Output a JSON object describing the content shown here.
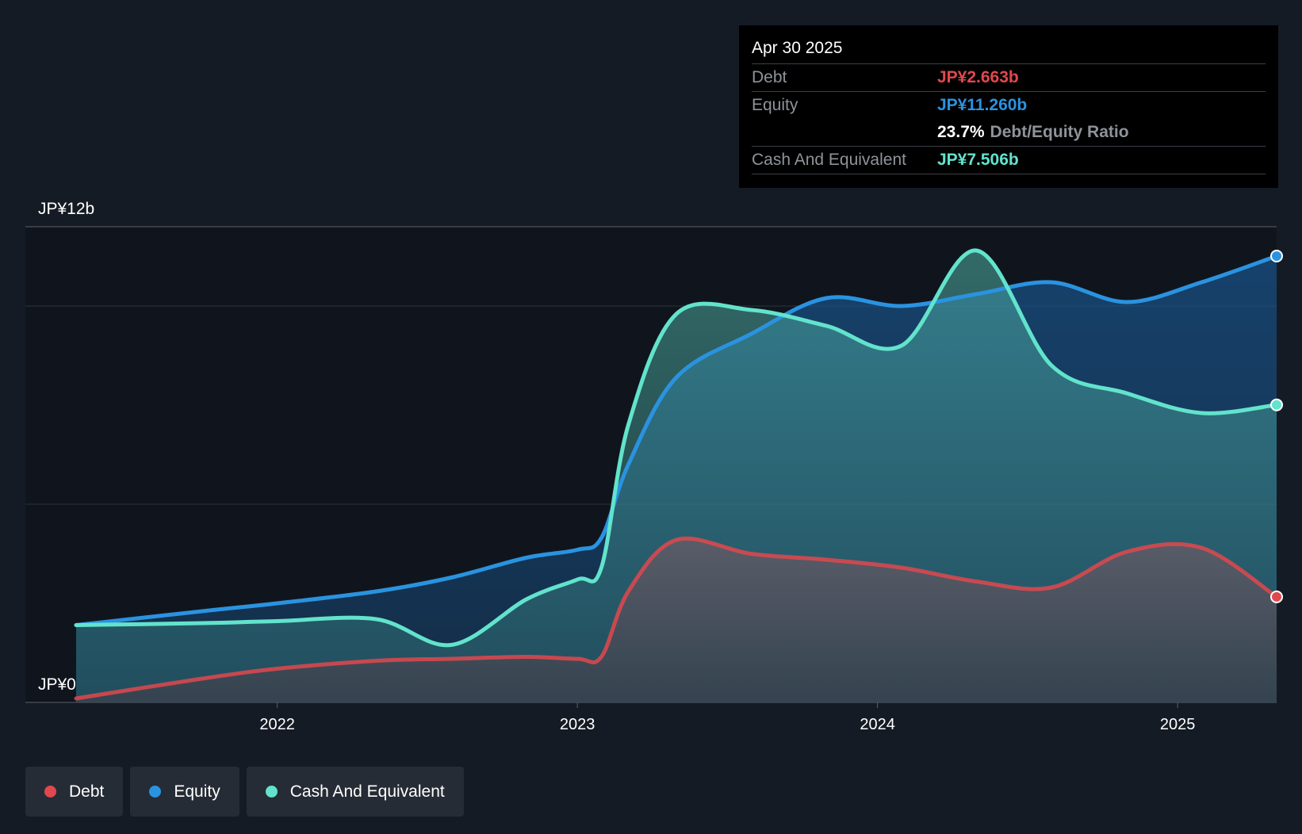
{
  "colors": {
    "debt": "#e0484e",
    "equity": "#2a93e0",
    "cash": "#62e3cc",
    "background": "#151b24",
    "plot_background": "#10151d"
  },
  "tooltip": {
    "date": "Apr 30 2025",
    "debt_label": "Debt",
    "debt_value": "JP¥2.663b",
    "equity_label": "Equity",
    "equity_value": "JP¥11.260b",
    "ratio_value": "23.7%",
    "ratio_label": "Debt/Equity Ratio",
    "cash_label": "Cash And Equivalent",
    "cash_value": "JP¥7.506b"
  },
  "legend": {
    "debt": "Debt",
    "equity": "Equity",
    "cash": "Cash And Equivalent"
  },
  "chart_data": {
    "type": "area",
    "title": "",
    "xlabel": "",
    "ylabel": "",
    "y_top_label": "JP¥12b",
    "y_bottom_label": "JP¥0",
    "ylim": [
      0,
      12
    ],
    "y_unit": "JP¥ billions",
    "x_range": [
      2021.33,
      2025.33
    ],
    "x_ticks": [
      {
        "value": 2022,
        "label": "2022"
      },
      {
        "value": 2023,
        "label": "2023"
      },
      {
        "value": 2024,
        "label": "2024"
      },
      {
        "value": 2025,
        "label": "2025"
      }
    ],
    "gridlines": [
      5,
      10
    ],
    "series": [
      {
        "name": "Equity",
        "key": "equity",
        "points": [
          [
            2021.33,
            1.95
          ],
          [
            2021.75,
            2.3
          ],
          [
            2022.0,
            2.5
          ],
          [
            2022.33,
            2.8
          ],
          [
            2022.58,
            3.15
          ],
          [
            2022.83,
            3.65
          ],
          [
            2023.0,
            3.85
          ],
          [
            2023.08,
            4.15
          ],
          [
            2023.17,
            6.0
          ],
          [
            2023.33,
            8.2
          ],
          [
            2023.58,
            9.3
          ],
          [
            2023.83,
            10.2
          ],
          [
            2024.08,
            10.0
          ],
          [
            2024.33,
            10.3
          ],
          [
            2024.58,
            10.6
          ],
          [
            2024.83,
            10.1
          ],
          [
            2025.08,
            10.6
          ],
          [
            2025.33,
            11.26
          ]
        ]
      },
      {
        "name": "Cash And Equivalent",
        "key": "cash",
        "points": [
          [
            2021.33,
            1.95
          ],
          [
            2021.75,
            2.0
          ],
          [
            2022.0,
            2.05
          ],
          [
            2022.33,
            2.1
          ],
          [
            2022.58,
            1.45
          ],
          [
            2022.83,
            2.6
          ],
          [
            2023.0,
            3.1
          ],
          [
            2023.08,
            3.4
          ],
          [
            2023.17,
            7.0
          ],
          [
            2023.33,
            9.8
          ],
          [
            2023.58,
            9.9
          ],
          [
            2023.83,
            9.5
          ],
          [
            2024.08,
            9.0
          ],
          [
            2024.33,
            11.4
          ],
          [
            2024.58,
            8.5
          ],
          [
            2024.83,
            7.8
          ],
          [
            2025.08,
            7.3
          ],
          [
            2025.33,
            7.506
          ]
        ]
      },
      {
        "name": "Debt",
        "key": "debt",
        "points": [
          [
            2021.33,
            0.1
          ],
          [
            2021.75,
            0.6
          ],
          [
            2022.0,
            0.85
          ],
          [
            2022.33,
            1.05
          ],
          [
            2022.58,
            1.1
          ],
          [
            2022.83,
            1.15
          ],
          [
            2023.0,
            1.1
          ],
          [
            2023.08,
            1.15
          ],
          [
            2023.17,
            2.8
          ],
          [
            2023.33,
            4.1
          ],
          [
            2023.58,
            3.75
          ],
          [
            2023.83,
            3.6
          ],
          [
            2024.08,
            3.4
          ],
          [
            2024.33,
            3.05
          ],
          [
            2024.58,
            2.9
          ],
          [
            2024.83,
            3.8
          ],
          [
            2025.08,
            3.9
          ],
          [
            2025.33,
            2.663
          ]
        ]
      }
    ]
  }
}
